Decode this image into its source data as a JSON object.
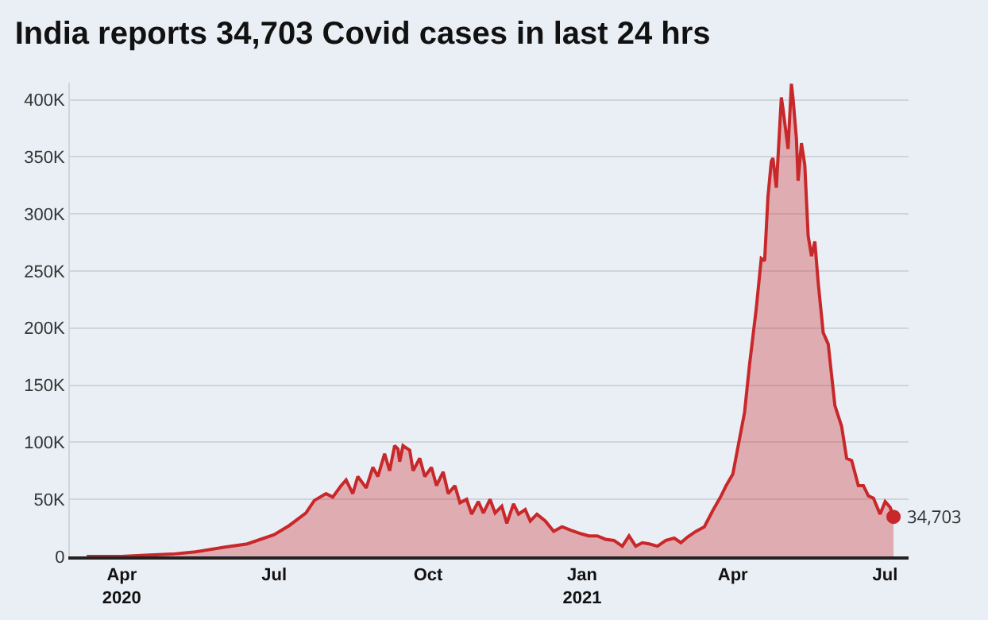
{
  "chart_data": {
    "type": "area",
    "title": "India reports 34,703 Covid cases in last 24 hrs",
    "x": [
      "2020-03-11",
      "2020-04-01",
      "2020-04-15",
      "2020-05-01",
      "2020-05-15",
      "2020-06-01",
      "2020-06-15",
      "2020-07-01",
      "2020-07-10",
      "2020-07-20",
      "2020-07-25",
      "2020-08-01",
      "2020-08-05",
      "2020-08-10",
      "2020-08-13",
      "2020-08-17",
      "2020-08-20",
      "2020-08-25",
      "2020-08-29",
      "2020-09-01",
      "2020-09-05",
      "2020-09-08",
      "2020-09-11",
      "2020-09-13",
      "2020-09-14",
      "2020-09-16",
      "2020-09-20",
      "2020-09-22",
      "2020-09-26",
      "2020-09-29",
      "2020-10-03",
      "2020-10-06",
      "2020-10-10",
      "2020-10-13",
      "2020-10-17",
      "2020-10-20",
      "2020-10-24",
      "2020-10-27",
      "2020-10-31",
      "2020-11-03",
      "2020-11-07",
      "2020-11-10",
      "2020-11-14",
      "2020-11-17",
      "2020-11-21",
      "2020-11-24",
      "2020-11-28",
      "2020-12-01",
      "2020-12-05",
      "2020-12-10",
      "2020-12-15",
      "2020-12-20",
      "2020-12-25",
      "2020-12-31",
      "2021-01-05",
      "2021-01-10",
      "2021-01-15",
      "2021-01-20",
      "2021-01-25",
      "2021-01-29",
      "2021-02-02",
      "2021-02-06",
      "2021-02-10",
      "2021-02-15",
      "2021-02-20",
      "2021-02-25",
      "2021-03-01",
      "2021-03-05",
      "2021-03-10",
      "2021-03-15",
      "2021-03-20",
      "2021-03-25",
      "2021-03-28",
      "2021-04-01",
      "2021-04-05",
      "2021-04-08",
      "2021-04-11",
      "2021-04-15",
      "2021-04-18",
      "2021-04-20",
      "2021-04-22",
      "2021-04-24",
      "2021-04-25",
      "2021-04-27",
      "2021-04-30",
      "2021-05-01",
      "2021-05-04",
      "2021-05-06",
      "2021-05-07",
      "2021-05-09",
      "2021-05-10",
      "2021-05-12",
      "2021-05-14",
      "2021-05-16",
      "2021-05-18",
      "2021-05-20",
      "2021-05-22",
      "2021-05-25",
      "2021-05-28",
      "2021-06-01",
      "2021-06-05",
      "2021-06-08",
      "2021-06-11",
      "2021-06-15",
      "2021-06-18",
      "2021-06-21",
      "2021-06-24",
      "2021-06-28",
      "2021-07-01",
      "2021-07-04",
      "2021-07-06"
    ],
    "series": [
      {
        "color": "#c8282a",
        "values": [
          0,
          0,
          1000,
          2000,
          4000,
          8000,
          11000,
          19000,
          27000,
          38000,
          49000,
          55000,
          52000,
          62000,
          67000,
          55000,
          70000,
          60000,
          78000,
          70000,
          90000,
          75000,
          97000,
          94000,
          83000,
          97000,
          93000,
          75000,
          86000,
          70000,
          78000,
          62000,
          74000,
          55000,
          62000,
          47000,
          50000,
          37000,
          48000,
          38000,
          50000,
          38000,
          44000,
          29000,
          46000,
          37000,
          41000,
          31000,
          37000,
          31000,
          22000,
          26000,
          23000,
          20000,
          18000,
          18000,
          15000,
          14000,
          9000,
          18000,
          9000,
          12000,
          11000,
          9000,
          14000,
          16000,
          12000,
          17000,
          22000,
          26000,
          40000,
          53000,
          62000,
          72000,
          103000,
          126000,
          168000,
          217000,
          261000,
          259000,
          315000,
          346000,
          349000,
          323000,
          402000,
          392000,
          357000,
          414000,
          401000,
          366000,
          329000,
          362000,
          343000,
          281000,
          263000,
          276000,
          240000,
          196000,
          186000,
          132000,
          114000,
          86000,
          84000,
          62000,
          62000,
          53000,
          51000,
          37000,
          48000,
          43000,
          34703
        ]
      }
    ],
    "annotations": [
      {
        "text": "34,703",
        "x": "2021-07-06",
        "y": 34703
      }
    ],
    "xlim": [
      "2020-03-01",
      "2021-07-15"
    ],
    "xticks": [
      {
        "value": "2020-04-01",
        "label": "Apr\n2020"
      },
      {
        "value": "2020-07-01",
        "label": "Jul"
      },
      {
        "value": "2020-10-01",
        "label": "Oct"
      },
      {
        "value": "2021-01-01",
        "label": "Jan\n2021"
      },
      {
        "value": "2021-04-01",
        "label": "Apr"
      },
      {
        "value": "2021-07-01",
        "label": "Jul"
      }
    ],
    "ylim": [
      0,
      415000
    ],
    "yticks": [
      {
        "value": 0,
        "label": "0"
      },
      {
        "value": 50000,
        "label": "50K"
      },
      {
        "value": 100000,
        "label": "100K"
      },
      {
        "value": 150000,
        "label": "150K"
      },
      {
        "value": 200000,
        "label": "200K"
      },
      {
        "value": 250000,
        "label": "250K"
      },
      {
        "value": 300000,
        "label": "300K"
      },
      {
        "value": 350000,
        "label": "350K"
      },
      {
        "value": 400000,
        "label": "400K"
      }
    ],
    "grid": "y",
    "line_style": "solid",
    "legend": false
  }
}
